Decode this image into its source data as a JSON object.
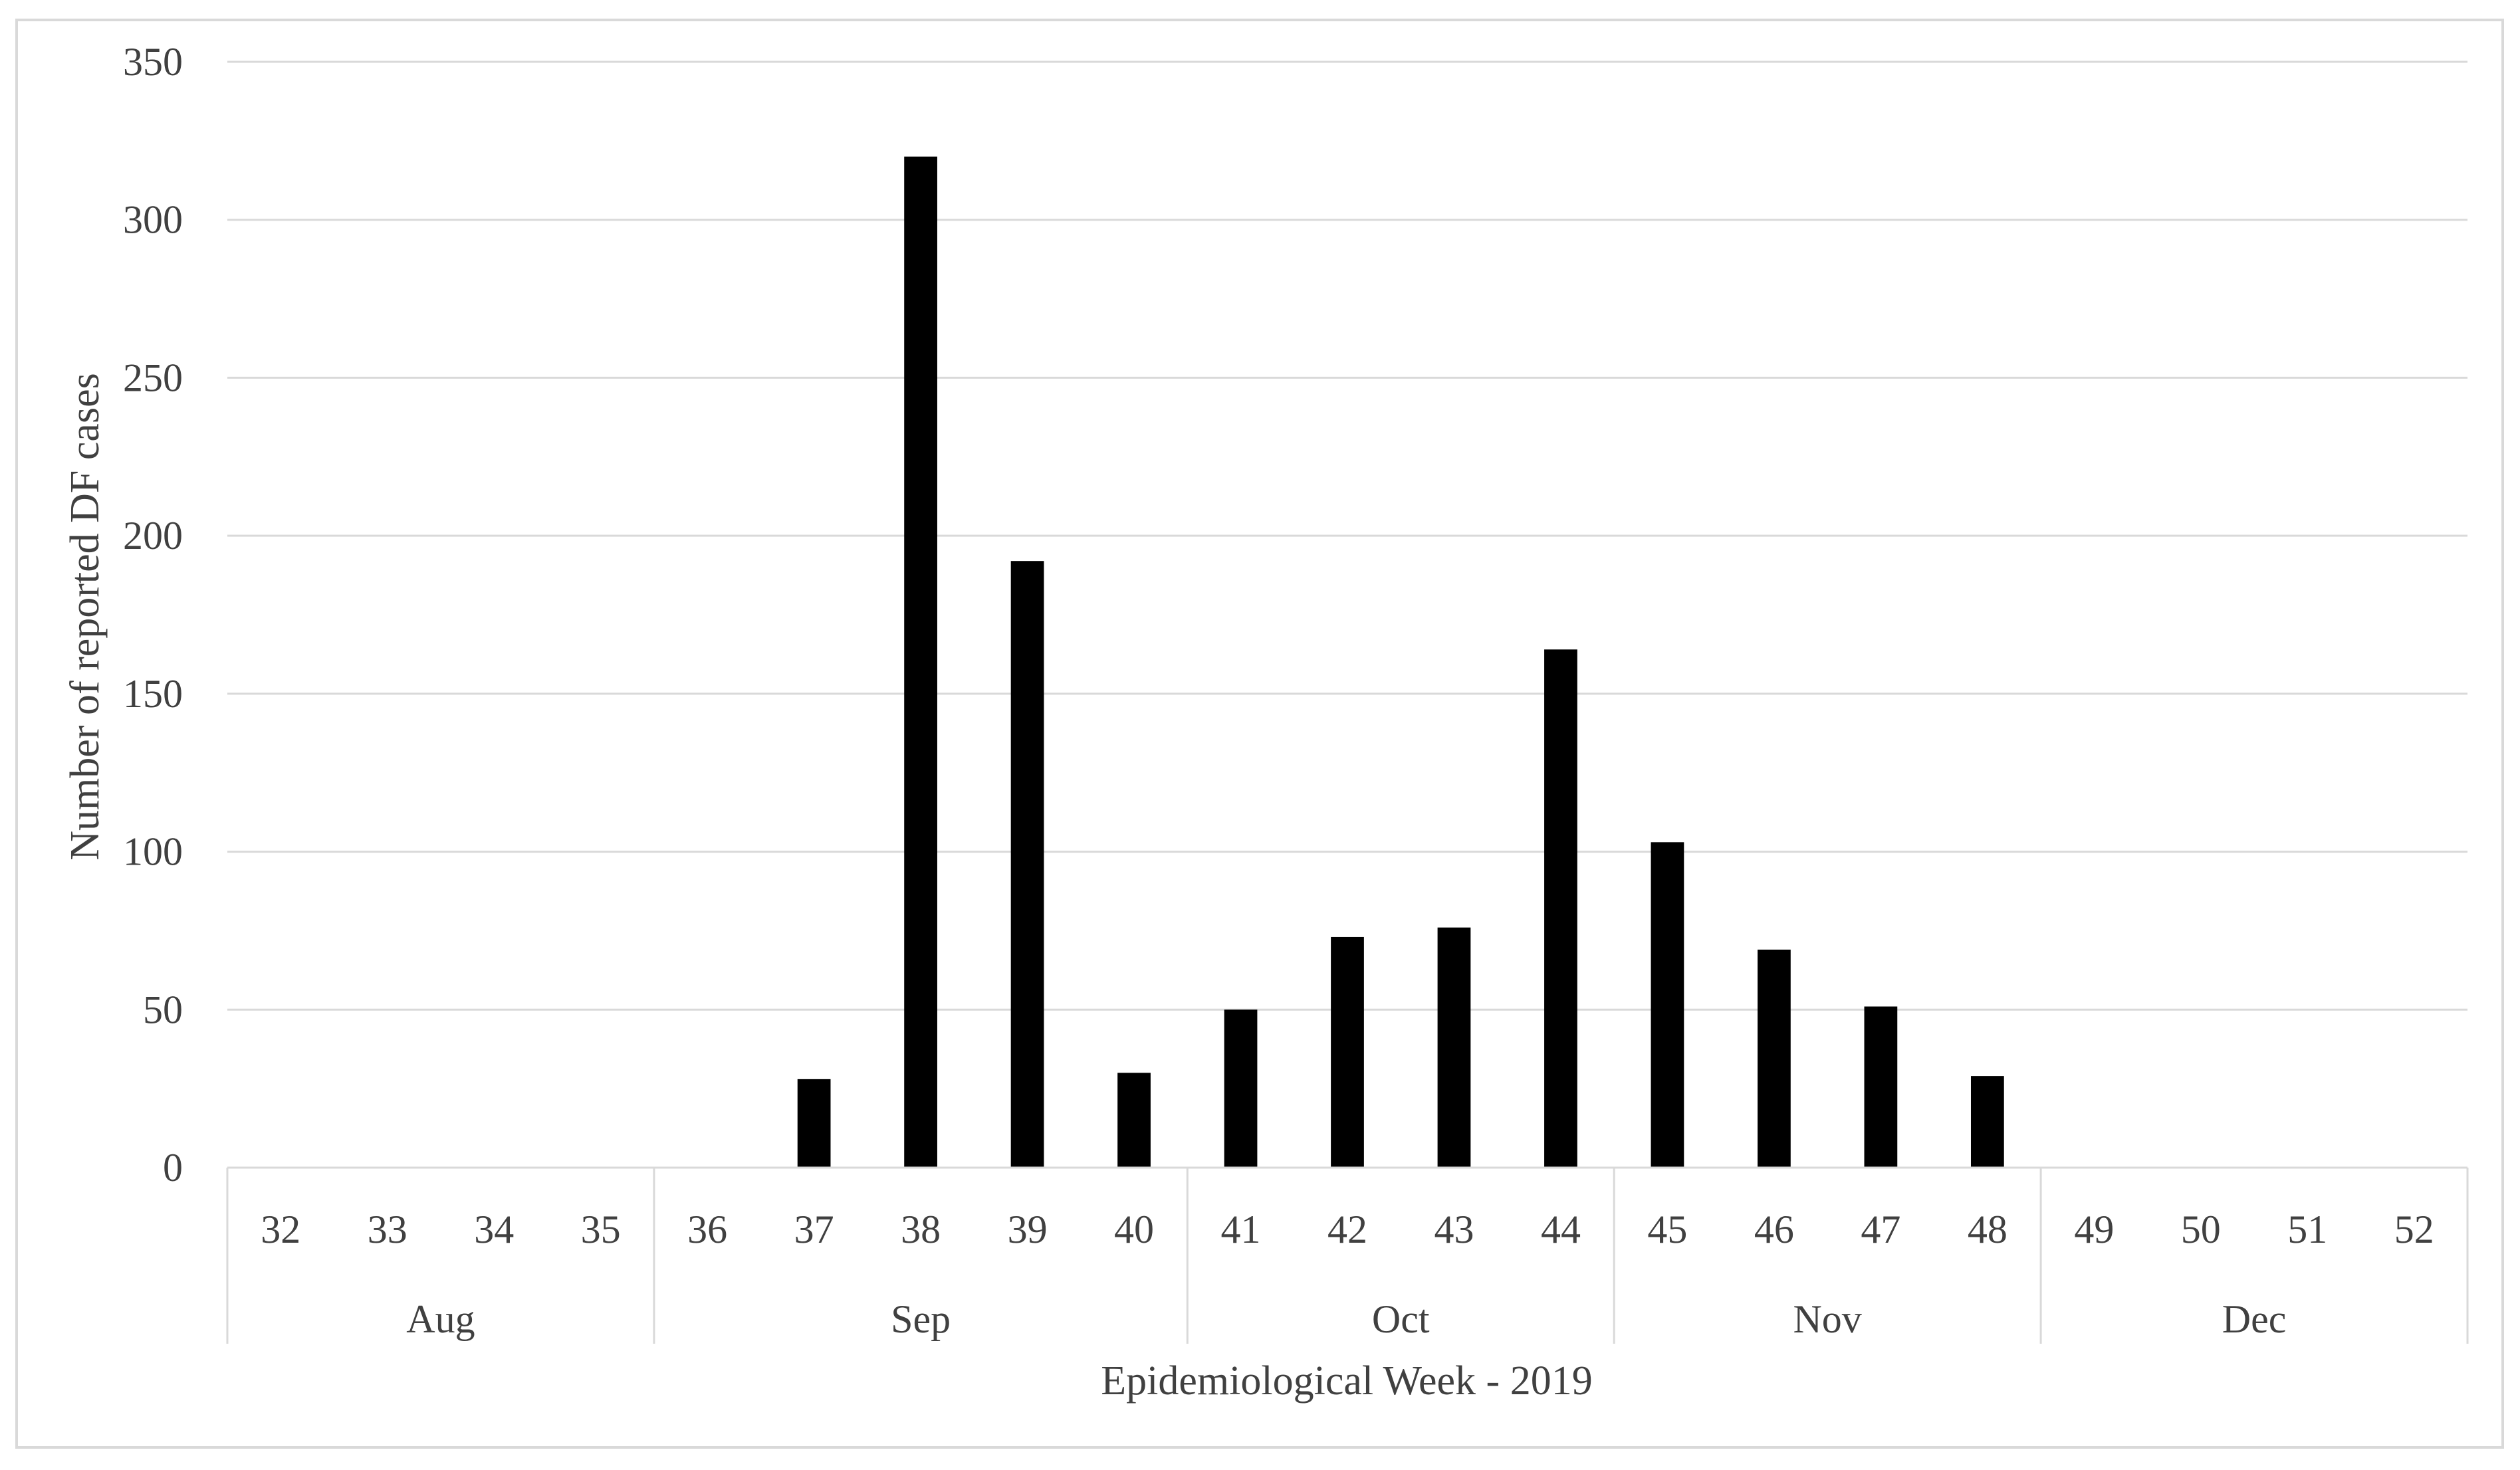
{
  "chart_data": {
    "type": "bar",
    "xlabel": "Epidemiological Week - 2019",
    "ylabel": "Number of reported DF cases",
    "ylim": [
      0,
      350
    ],
    "yticks": [
      0,
      50,
      100,
      150,
      200,
      250,
      300,
      350
    ],
    "grid": true,
    "legend": "none",
    "bar_color": "#000000",
    "categories": [
      "32",
      "33",
      "34",
      "35",
      "36",
      "37",
      "38",
      "39",
      "40",
      "41",
      "42",
      "43",
      "44",
      "45",
      "46",
      "47",
      "48",
      "49",
      "50",
      "51",
      "52"
    ],
    "values": [
      0,
      0,
      0,
      0,
      0,
      28,
      320,
      192,
      30,
      50,
      73,
      76,
      164,
      103,
      69,
      51,
      29,
      0,
      0,
      0,
      0
    ],
    "months": [
      {
        "label": "Aug",
        "start": 0,
        "count": 4
      },
      {
        "label": "Sep",
        "start": 4,
        "count": 5
      },
      {
        "label": "Oct",
        "start": 9,
        "count": 4
      },
      {
        "label": "Nov",
        "start": 13,
        "count": 4
      },
      {
        "label": "Dec",
        "start": 17,
        "count": 4
      }
    ]
  }
}
